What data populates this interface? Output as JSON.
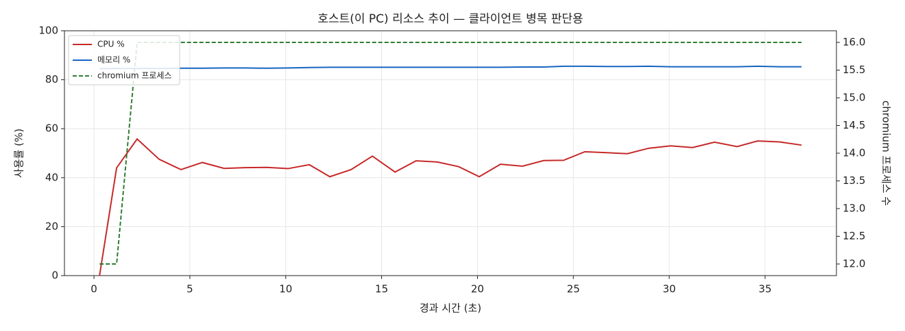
{
  "chart_data": {
    "type": "line",
    "title": "호스트(이 PC) 리소스 추이 — 클라이언트 병목 판단용",
    "xlabel": "경과 시간 (초)",
    "ylabel": "사용률 (%)",
    "y2label": "chromium 프로세스 수",
    "x": [
      0.29,
      1.18,
      2.25,
      3.4,
      4.54,
      5.65,
      6.79,
      7.9,
      9.01,
      10.12,
      11.23,
      12.3,
      13.41,
      14.52,
      15.7,
      16.8,
      17.91,
      19.02,
      20.09,
      21.2,
      22.35,
      23.45,
      24.49,
      25.6,
      26.74,
      27.82,
      28.92,
      30.07,
      31.21,
      32.36,
      33.54,
      34.61,
      35.75,
      36.9
    ],
    "series": [
      {
        "name": "CPU %",
        "color": "#c62828",
        "axis": "y",
        "dash": false,
        "values": [
          0,
          44,
          55.8,
          47.5,
          43.3,
          46.2,
          43.8,
          44.1,
          44.2,
          43.7,
          45.3,
          40.4,
          43.3,
          48.8,
          42.3,
          46.9,
          46.4,
          44.5,
          40.4,
          45.5,
          44.7,
          47,
          47.1,
          50.6,
          50.2,
          49.8,
          52,
          53,
          52.3,
          54.5,
          52.7,
          55,
          54.6,
          53.3
        ]
      },
      {
        "name": "메모리 %",
        "color": "#1565c0",
        "axis": "y",
        "dash": false,
        "values": [
          84.5,
          84.6,
          84.6,
          84.6,
          84.7,
          84.7,
          84.8,
          84.8,
          84.7,
          84.8,
          85,
          85.1,
          85.1,
          85.1,
          85.1,
          85.1,
          85.1,
          85.1,
          85.1,
          85.1,
          85.2,
          85.2,
          85.5,
          85.5,
          85.4,
          85.4,
          85.5,
          85.3,
          85.3,
          85.3,
          85.3,
          85.5,
          85.3,
          85.3
        ]
      },
      {
        "name": "chromium 프로세스",
        "color": "#2e7d32",
        "axis": "y2",
        "dash": true,
        "values": [
          12,
          12,
          16,
          16,
          16,
          16,
          16,
          16,
          16,
          16,
          16,
          16,
          16,
          16,
          16,
          16,
          16,
          16,
          16,
          16,
          16,
          16,
          16,
          16,
          16,
          16,
          16,
          16,
          16,
          16,
          16,
          16,
          16,
          16
        ]
      }
    ],
    "xlim": [
      -1.54,
      38.72
    ],
    "xticks": [
      0,
      5,
      10,
      15,
      20,
      25,
      30,
      35
    ],
    "ylim": [
      0,
      100
    ],
    "yticks": [
      0,
      20,
      40,
      60,
      80,
      100
    ],
    "y2lim": [
      11.79,
      16.21
    ],
    "y2ticks": [
      {
        "value": 12,
        "label": "12.0"
      },
      12.5,
      {
        "value": 13,
        "label": "13.0"
      },
      13.5,
      {
        "value": 14,
        "label": "14.0"
      },
      14.5,
      {
        "value": 15,
        "label": "15.0"
      },
      15.5,
      {
        "value": 16,
        "label": "16.0"
      }
    ],
    "grid": true,
    "legend": "upper-left"
  }
}
